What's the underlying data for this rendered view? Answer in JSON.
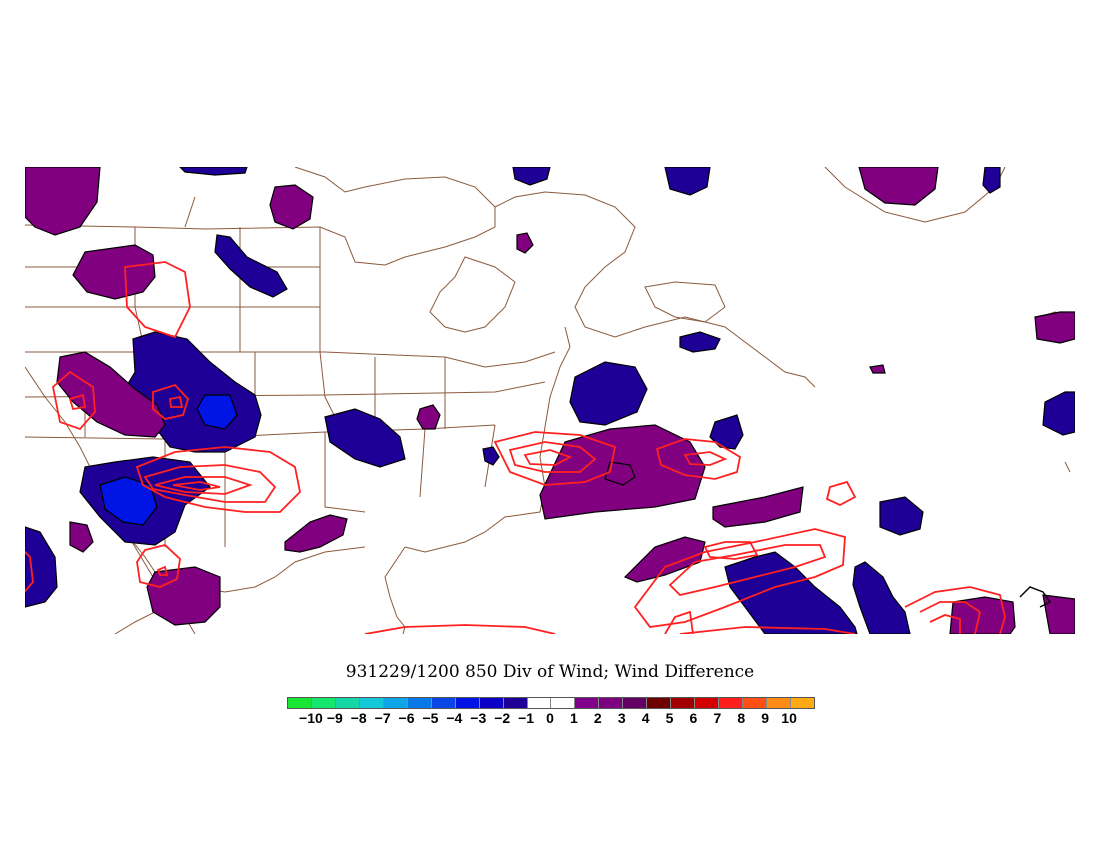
{
  "title": "931229/1200 850 Div of Wind; Wind Difference",
  "colors": {
    "coastline": "#8b5a3c",
    "positive_fill": "#800080",
    "negative_fill": "#1e0096",
    "strong_negative_fill": "#0014e6",
    "contour": "#ff2020"
  },
  "colorbar": {
    "labels": [
      "-10",
      "-9",
      "-8",
      "-7",
      "-6",
      "-5",
      "-4",
      "-3",
      "-2",
      "-1",
      "0",
      "1",
      "2",
      "3",
      "4",
      "5",
      "6",
      "7",
      "8",
      "9",
      "10"
    ],
    "colors": [
      "#19e632",
      "#14e66e",
      "#14d7a5",
      "#14c8d7",
      "#0fa5e6",
      "#0a78e6",
      "#0a46e6",
      "#0014e6",
      "#0a00c8",
      "#1e0096",
      "#ffffff",
      "#ffffff",
      "#80008c",
      "#7a0080",
      "#640064",
      "#6e0000",
      "#a00000",
      "#d20000",
      "#ff1e1e",
      "#ff5014",
      "#ff8c14",
      "#ffaa14"
    ]
  }
}
